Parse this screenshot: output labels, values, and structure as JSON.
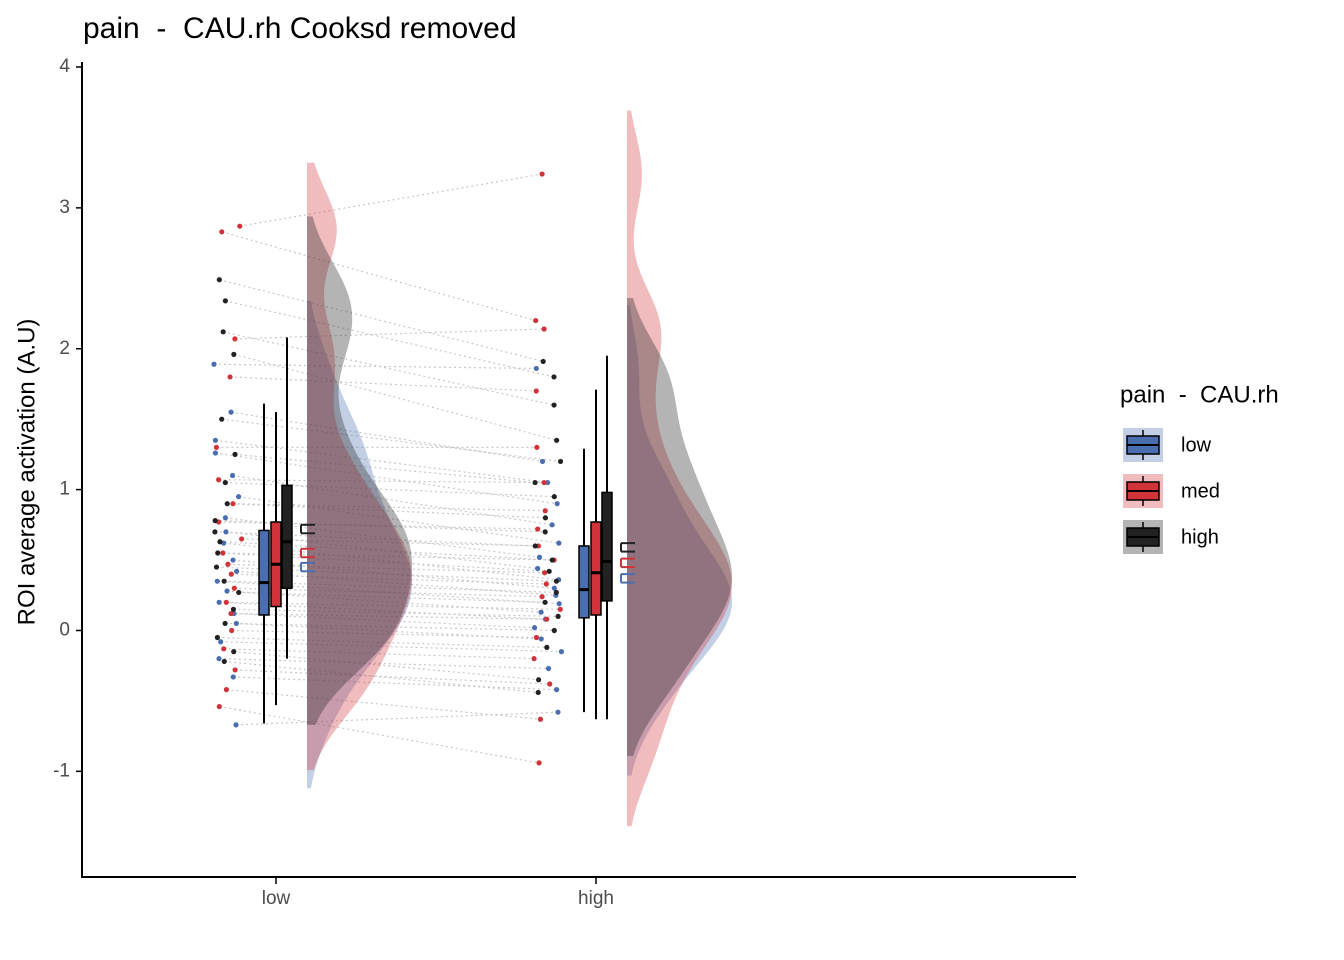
{
  "chart_data": {
    "type": "raincloud",
    "title": "pain  -  CAU.rh Cooksd removed",
    "y_label": "ROI average activation (A.U)",
    "legend_title": "pain  -  CAU.rh",
    "categories": [
      "low",
      "high"
    ],
    "ylim": [
      -1.75,
      4
    ],
    "yticks": [
      -1,
      0,
      1,
      2,
      3,
      4
    ],
    "series": [
      {
        "name": "low",
        "color": "#4a6eb0",
        "boxes": [
          {
            "min": -0.66,
            "q1": 0.11,
            "median": 0.34,
            "q3": 0.71,
            "max": 1.61
          },
          {
            "min": -0.58,
            "q1": 0.09,
            "median": 0.29,
            "q3": 0.6,
            "max": 1.29
          }
        ],
        "means": [
          0.45,
          0.37
        ],
        "errors": [
          0.03,
          0.03
        ],
        "points": [
          [
            1.89,
            1.55,
            1.35,
            1.26,
            1.1,
            0.95,
            0.8,
            0.7,
            0.62,
            0.5,
            0.42,
            0.35,
            0.28,
            0.2,
            0.12,
            0.05,
            -0.08,
            -0.2,
            -0.33,
            -0.67
          ],
          [
            1.86,
            1.2,
            1.05,
            0.9,
            0.75,
            0.62,
            0.52,
            0.44,
            0.36,
            0.3,
            0.25,
            0.19,
            0.13,
            0.08,
            0.02,
            -0.06,
            -0.15,
            -0.27,
            -0.42,
            -0.58
          ]
        ]
      },
      {
        "name": "med",
        "color": "#d0343a",
        "boxes": [
          {
            "min": -0.53,
            "q1": 0.17,
            "median": 0.47,
            "q3": 0.77,
            "max": 1.55
          },
          {
            "min": -0.63,
            "q1": 0.11,
            "median": 0.41,
            "q3": 0.77,
            "max": 1.71
          }
        ],
        "means": [
          0.55,
          0.48
        ],
        "errors": [
          0.03,
          0.03
        ],
        "points": [
          [
            2.87,
            2.83,
            2.07,
            1.8,
            1.3,
            1.07,
            0.9,
            0.77,
            0.65,
            0.55,
            0.47,
            0.4,
            0.3,
            0.2,
            0.12,
            0.0,
            -0.13,
            -0.28,
            -0.42,
            -0.54
          ],
          [
            3.24,
            2.2,
            2.14,
            1.7,
            1.3,
            1.05,
            0.85,
            0.72,
            0.6,
            0.5,
            0.41,
            0.33,
            0.24,
            0.15,
            0.08,
            -0.05,
            -0.2,
            -0.38,
            -0.63,
            -0.94
          ]
        ]
      },
      {
        "name": "high",
        "color": "#222222",
        "boxes": [
          {
            "min": -0.2,
            "q1": 0.3,
            "median": 0.63,
            "q3": 1.03,
            "max": 2.08
          },
          {
            "min": -0.63,
            "q1": 0.21,
            "median": 0.49,
            "q3": 0.98,
            "max": 1.95
          }
        ],
        "means": [
          0.72,
          0.59
        ],
        "errors": [
          0.03,
          0.03
        ],
        "points": [
          [
            2.49,
            2.34,
            2.12,
            1.96,
            1.5,
            1.25,
            1.05,
            0.9,
            0.78,
            0.7,
            0.63,
            0.55,
            0.45,
            0.35,
            0.27,
            0.15,
            0.05,
            -0.05,
            -0.15,
            -0.22
          ],
          [
            1.91,
            1.8,
            1.6,
            1.35,
            1.2,
            1.05,
            0.95,
            0.8,
            0.7,
            0.6,
            0.5,
            0.42,
            0.35,
            0.27,
            0.2,
            0.1,
            0.0,
            -0.12,
            -0.35,
            -0.44
          ]
        ]
      }
    ]
  }
}
